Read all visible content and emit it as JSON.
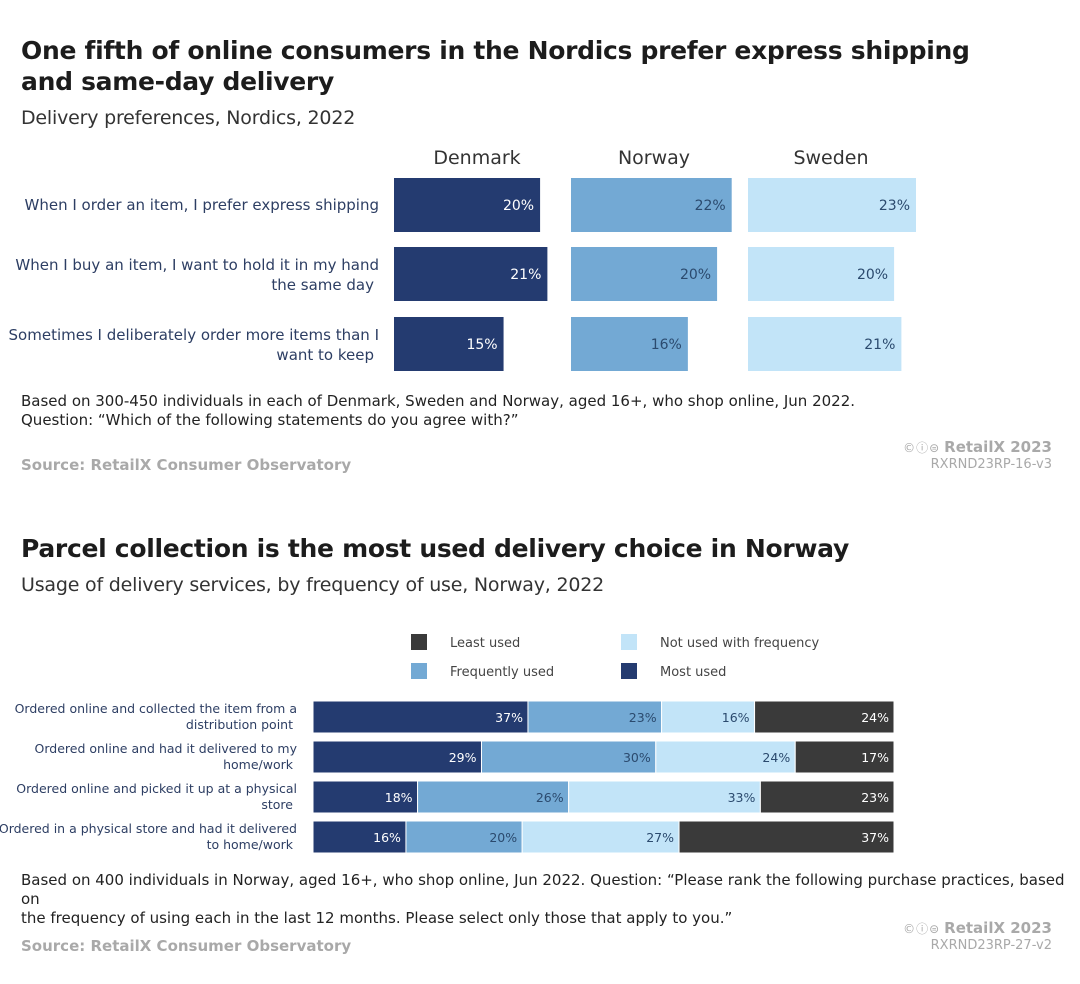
{
  "colors": {
    "dark_navy": "#243b70",
    "mid_blue": "#73a9d4",
    "light_blue": "#c2e4f8",
    "charcoal": "#3a3a3a",
    "source_grey": "#a9a9a9"
  },
  "chart_data": [
    {
      "type": "bar",
      "title_line1": "One fifth of online consumers in the Nordics prefer express shipping",
      "title_line2": "and same-day delivery",
      "subtitle": "Delivery preferences, Nordics, 2022",
      "panels": [
        "Denmark",
        "Norway",
        "Sweden"
      ],
      "categories": [
        {
          "line1": "When I order an item, I prefer express shipping",
          "line2": ""
        },
        {
          "line1": "When I buy an item, I want to hold it in my hand",
          "line2": "the same day"
        },
        {
          "line1": "Sometimes I deliberately order more items than I",
          "line2": "want to keep"
        }
      ],
      "series": [
        {
          "name": "Denmark",
          "values": [
            20,
            21,
            15
          ],
          "labels": [
            "20%",
            "21%",
            "15%"
          ]
        },
        {
          "name": "Norway",
          "values": [
            22,
            20,
            16
          ],
          "labels": [
            "22%",
            "20%",
            "16%"
          ]
        },
        {
          "name": "Sweden",
          "values": [
            23,
            20,
            21
          ],
          "labels": [
            "23%",
            "20%",
            "21%"
          ]
        }
      ],
      "xlim": [
        0,
        23
      ],
      "note_line1": "Based on 300-450 individuals in each of Denmark, Sweden and Norway, aged 16+, who shop online, Jun 2022.",
      "note_line2": "Question: “Which of the following statements do you agree with?”",
      "source": "Source: RetailX Consumer Observatory",
      "cc_icons": "©ⓘ⊜",
      "brand": "RetailX 2023",
      "code": "RXRND23RP-16-v3"
    },
    {
      "type": "bar",
      "stacked": true,
      "orientation": "horizontal",
      "title": "Parcel collection is the most used delivery choice in Norway",
      "subtitle": "Usage of delivery services, by frequency of use, Norway, 2022",
      "legend": [
        {
          "name": "Least used",
          "color": "#3a3a3a"
        },
        {
          "name": "Not used with frequency",
          "color": "#c2e4f8"
        },
        {
          "name": "Frequently used",
          "color": "#73a9d4"
        },
        {
          "name": "Most used",
          "color": "#243b70"
        }
      ],
      "categories": [
        {
          "line1": "Ordered online and collected the item from a",
          "line2": "distribution point"
        },
        {
          "line1": "Ordered online and had it delivered to my",
          "line2": "home/work"
        },
        {
          "line1": "Ordered online and picked it up at a physical",
          "line2": "store"
        },
        {
          "line1": "Ordered in a physical store and had it delivered",
          "line2": "to home/work"
        }
      ],
      "series": [
        {
          "name": "Most used",
          "values": [
            37,
            29,
            18,
            16
          ],
          "labels": [
            "37%",
            "29%",
            "18%",
            "16%"
          ]
        },
        {
          "name": "Frequently used",
          "values": [
            23,
            30,
            26,
            20
          ],
          "labels": [
            "23%",
            "30%",
            "26%",
            "20%"
          ]
        },
        {
          "name": "Not used with frequency",
          "values": [
            16,
            24,
            33,
            27
          ],
          "labels": [
            "16%",
            "24%",
            "33%",
            "27%"
          ]
        },
        {
          "name": "Least used",
          "values": [
            24,
            17,
            23,
            37
          ],
          "labels": [
            "24%",
            "17%",
            "23%",
            "37%"
          ]
        }
      ],
      "xlim": [
        0,
        100
      ],
      "note_line1": "Based on 400 individuals in Norway, aged 16+, who shop online, Jun 2022. Question: “Please rank the following purchase practices, based on",
      "note_line2": "the frequency of using each in the last 12 months. Please select only those that apply to you.”",
      "source": "Source: RetailX Consumer Observatory",
      "cc_icons": "©ⓘ⊜",
      "brand": "RetailX 2023",
      "code": "RXRND23RP-27-v2"
    }
  ]
}
